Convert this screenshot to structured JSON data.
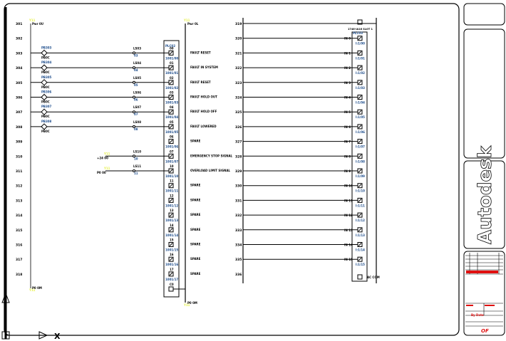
{
  "colors": {
    "line": "#000000",
    "blue": "#1a4a8a",
    "wire_tag": "#e6f04a",
    "titleblock_red": "#e01010",
    "frame": "#000000"
  },
  "left": {
    "top_left_tag": "Y11",
    "top_left_label": "Pwr 0U",
    "top_right_tag": "Y11",
    "top_right_label": "Pwr 0L",
    "bottom_left_tag": "Y11",
    "bottom_left_label": "P0 0M",
    "bottom_right_tag": "Y11",
    "bottom_right_label": "P0 0M",
    "module_header": "PLC02",
    "rungs": [
      {
        "num": "301",
        "desc": "",
        "input": null,
        "contact": null,
        "term": "",
        "ref": ""
      },
      {
        "num": "302",
        "desc": "",
        "input": null,
        "contact": null,
        "term": "",
        "ref": ""
      },
      {
        "num": "303",
        "desc": "FAULT RESET",
        "input": {
          "tag": "PB303",
          "sub": "PB0C"
        },
        "contact": {
          "top": "LS03",
          "bot": "03"
        },
        "term": "00",
        "ref": "1001/00"
      },
      {
        "num": "304",
        "desc": "FAULT IN SYSTEM",
        "input": {
          "tag": "PB304",
          "sub": "PB0C"
        },
        "contact": {
          "top": "LS04",
          "bot": "04"
        },
        "term": "01",
        "ref": "1001/01"
      },
      {
        "num": "305",
        "desc": "FAULT RESET",
        "input": {
          "tag": "PB305",
          "sub": "PB0C"
        },
        "contact": {
          "top": "LS05",
          "bot": "05"
        },
        "term": "02",
        "ref": "1001/02"
      },
      {
        "num": "306",
        "desc": "FAULT HOLD OUT",
        "input": {
          "tag": "PB306",
          "sub": "PB0C"
        },
        "contact": {
          "top": "LS06",
          "bot": "06"
        },
        "term": "03",
        "ref": "1001/03"
      },
      {
        "num": "307",
        "desc": "FAULT HOLD OFF",
        "input": {
          "tag": "PB307",
          "sub": "PB0C"
        },
        "contact": {
          "top": "LS07",
          "bot": "07"
        },
        "term": "04",
        "ref": "1001/04"
      },
      {
        "num": "308",
        "desc": "FAULT LOWERED",
        "input": {
          "tag": "PB308",
          "sub": "PB0C"
        },
        "contact": {
          "top": "LS08",
          "bot": "08"
        },
        "term": "05",
        "ref": "1001/05"
      },
      {
        "num": "309",
        "desc": "SPARE",
        "input": null,
        "contact": null,
        "term": "06",
        "ref": "1001/06"
      },
      {
        "num": "310",
        "desc": "EMERGENCY STOP SIGNAL",
        "input": null,
        "feed": {
          "tag": "Y11",
          "label": "+24 00"
        },
        "contact": {
          "top": "LS10",
          "bot": "10"
        },
        "term": "07",
        "ref": "1001/07"
      },
      {
        "num": "311",
        "desc": "OVERLOAD LIMIT SIGNAL",
        "input": null,
        "feed": {
          "tag": "Y11",
          "label": "P0 00"
        },
        "contact": {
          "top": "LS11",
          "bot": "11"
        },
        "term": "10",
        "ref": "1001/10"
      },
      {
        "num": "312",
        "desc": "SPARE",
        "input": null,
        "contact": null,
        "term": "11",
        "ref": "1001/11"
      },
      {
        "num": "313",
        "desc": "SPARE",
        "input": null,
        "contact": null,
        "term": "12",
        "ref": "1001/12"
      },
      {
        "num": "314",
        "desc": "SPARE",
        "input": null,
        "contact": null,
        "term": "13",
        "ref": "1001/13"
      },
      {
        "num": "315",
        "desc": "SPARE",
        "input": null,
        "contact": null,
        "term": "14",
        "ref": "1001/14"
      },
      {
        "num": "316",
        "desc": "SPARE",
        "input": null,
        "contact": null,
        "term": "15",
        "ref": "1001/15"
      },
      {
        "num": "317",
        "desc": "SPARE",
        "input": null,
        "contact": null,
        "term": "16",
        "ref": "1001/16"
      },
      {
        "num": "318",
        "desc": "SPARE",
        "input": null,
        "contact": null,
        "term": "17",
        "ref": "1001/17"
      }
    ],
    "common_term": "C0"
  },
  "right": {
    "module_header": "1746-IA16 SLOT 1",
    "module_tag": "PLC03",
    "common_label": "AC COM",
    "rungs": [
      {
        "num": "319",
        "in": "",
        "ref": ""
      },
      {
        "num": "320",
        "in": "IN 0",
        "ref": "I:1/00"
      },
      {
        "num": "321",
        "in": "IN 1",
        "ref": "I:1/01"
      },
      {
        "num": "322",
        "in": "IN 2",
        "ref": "I:1/02"
      },
      {
        "num": "323",
        "in": "IN 3",
        "ref": "I:1/03"
      },
      {
        "num": "324",
        "in": "IN 4",
        "ref": "I:1/04"
      },
      {
        "num": "325",
        "in": "IN 5",
        "ref": "I:1/05"
      },
      {
        "num": "326",
        "in": "IN 6",
        "ref": "I:1/06"
      },
      {
        "num": "327",
        "in": "IN 7",
        "ref": "I:1/07"
      },
      {
        "num": "328",
        "in": "IN 8",
        "ref": "I:1/08"
      },
      {
        "num": "329",
        "in": "IN 9",
        "ref": "I:1/09"
      },
      {
        "num": "330",
        "in": "IN 10",
        "ref": "I:1/10"
      },
      {
        "num": "331",
        "in": "IN 11",
        "ref": "I:1/11"
      },
      {
        "num": "332",
        "in": "IN 12",
        "ref": "I:1/12"
      },
      {
        "num": "333",
        "in": "IN 13",
        "ref": "I:1/13"
      },
      {
        "num": "334",
        "in": "IN 14",
        "ref": "I:1/14"
      },
      {
        "num": "335",
        "in": "IN 15",
        "ref": "I:1/15"
      },
      {
        "num": "336",
        "in": "",
        "ref": ""
      }
    ]
  },
  "titleblock": {
    "logo": "Autodesk",
    "drawn_by": "By Date",
    "sheet": "OF"
  }
}
